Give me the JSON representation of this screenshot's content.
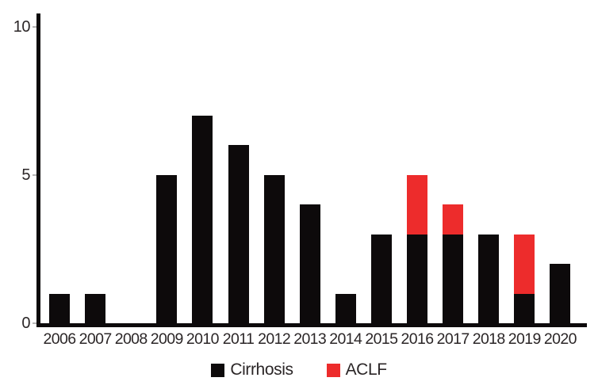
{
  "chart_data": {
    "type": "bar",
    "stacked": true,
    "title": "",
    "xlabel": "",
    "ylabel": "",
    "grid": false,
    "legend_position": "bottom",
    "categories": [
      "2006",
      "2007",
      "2008",
      "2009",
      "2010",
      "2011",
      "2012",
      "2013",
      "2014",
      "2015",
      "2016",
      "2017",
      "2018",
      "2019",
      "2020"
    ],
    "series": [
      {
        "name": "Cirrhosis",
        "color": "#0d0a0b",
        "values": [
          1,
          1,
          0,
          5,
          7,
          6,
          5,
          4,
          1,
          3,
          3,
          3,
          3,
          1,
          2
        ]
      },
      {
        "name": "ACLF",
        "color": "#ed2c2c",
        "values": [
          0,
          0,
          0,
          0,
          0,
          0,
          0,
          0,
          0,
          0,
          2,
          1,
          0,
          2,
          0
        ]
      }
    ],
    "yticks": [
      0,
      5,
      10
    ],
    "ylim": [
      0,
      10.5
    ]
  }
}
